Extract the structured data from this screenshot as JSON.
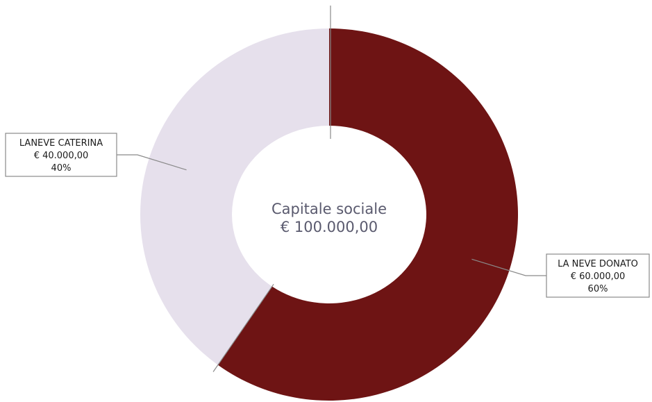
{
  "chart_data": {
    "type": "pie",
    "variant": "donut",
    "center_label": {
      "line1": "Capitale sociale",
      "line2": "€ 100.000,00"
    },
    "start_angle_deg": 0,
    "direction": "clockwise",
    "slices": [
      {
        "name": "LA NEVE DONATO",
        "amount": "€ 60.000,00",
        "percent_label": "60%",
        "value": 60,
        "color": "#6e1414",
        "label_side": "right"
      },
      {
        "name": "LANEVE CATERINA",
        "amount": "€ 40.000,00",
        "percent_label": "40%",
        "value": 40,
        "color": "#e6e0ec",
        "label_side": "left"
      }
    ]
  }
}
